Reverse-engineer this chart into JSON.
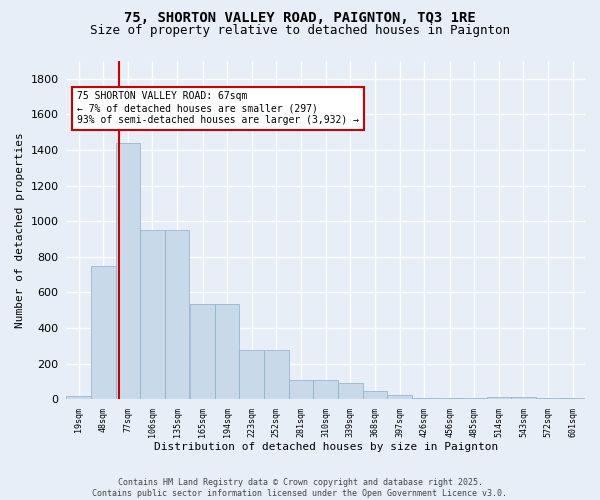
{
  "title1": "75, SHORTON VALLEY ROAD, PAIGNTON, TQ3 1RE",
  "title2": "Size of property relative to detached houses in Paignton",
  "xlabel": "Distribution of detached houses by size in Paignton",
  "ylabel": "Number of detached properties",
  "bar_centers": [
    19,
    48,
    77,
    106,
    135,
    165,
    194,
    223,
    252,
    281,
    310,
    339,
    368,
    397,
    426,
    456,
    485,
    514,
    543,
    572,
    601
  ],
  "bar_heights": [
    20,
    750,
    1440,
    950,
    950,
    535,
    535,
    275,
    275,
    110,
    110,
    90,
    45,
    25,
    10,
    5,
    5,
    15,
    15,
    10,
    10
  ],
  "bar_color": "#c8d9ea",
  "bar_edge_color": "#8aafc8",
  "background_color": "#e8eef8",
  "grid_color": "#ffffff",
  "vline_x": 67,
  "vline_color": "#cc0000",
  "annotation_text": "75 SHORTON VALLEY ROAD: 67sqm\n← 7% of detached houses are smaller (297)\n93% of semi-detached houses are larger (3,932) →",
  "annotation_box_facecolor": "#ffffff",
  "annotation_box_edgecolor": "#cc0000",
  "ylim": [
    0,
    1900
  ],
  "yticks": [
    0,
    200,
    400,
    600,
    800,
    1000,
    1200,
    1400,
    1600,
    1800
  ],
  "tick_labels": [
    "19sqm",
    "48sqm",
    "77sqm",
    "106sqm",
    "135sqm",
    "165sqm",
    "194sqm",
    "223sqm",
    "252sqm",
    "281sqm",
    "310sqm",
    "339sqm",
    "368sqm",
    "397sqm",
    "426sqm",
    "456sqm",
    "485sqm",
    "514sqm",
    "543sqm",
    "572sqm",
    "601sqm"
  ],
  "footer": "Contains HM Land Registry data © Crown copyright and database right 2025.\nContains public sector information licensed under the Open Government Licence v3.0."
}
